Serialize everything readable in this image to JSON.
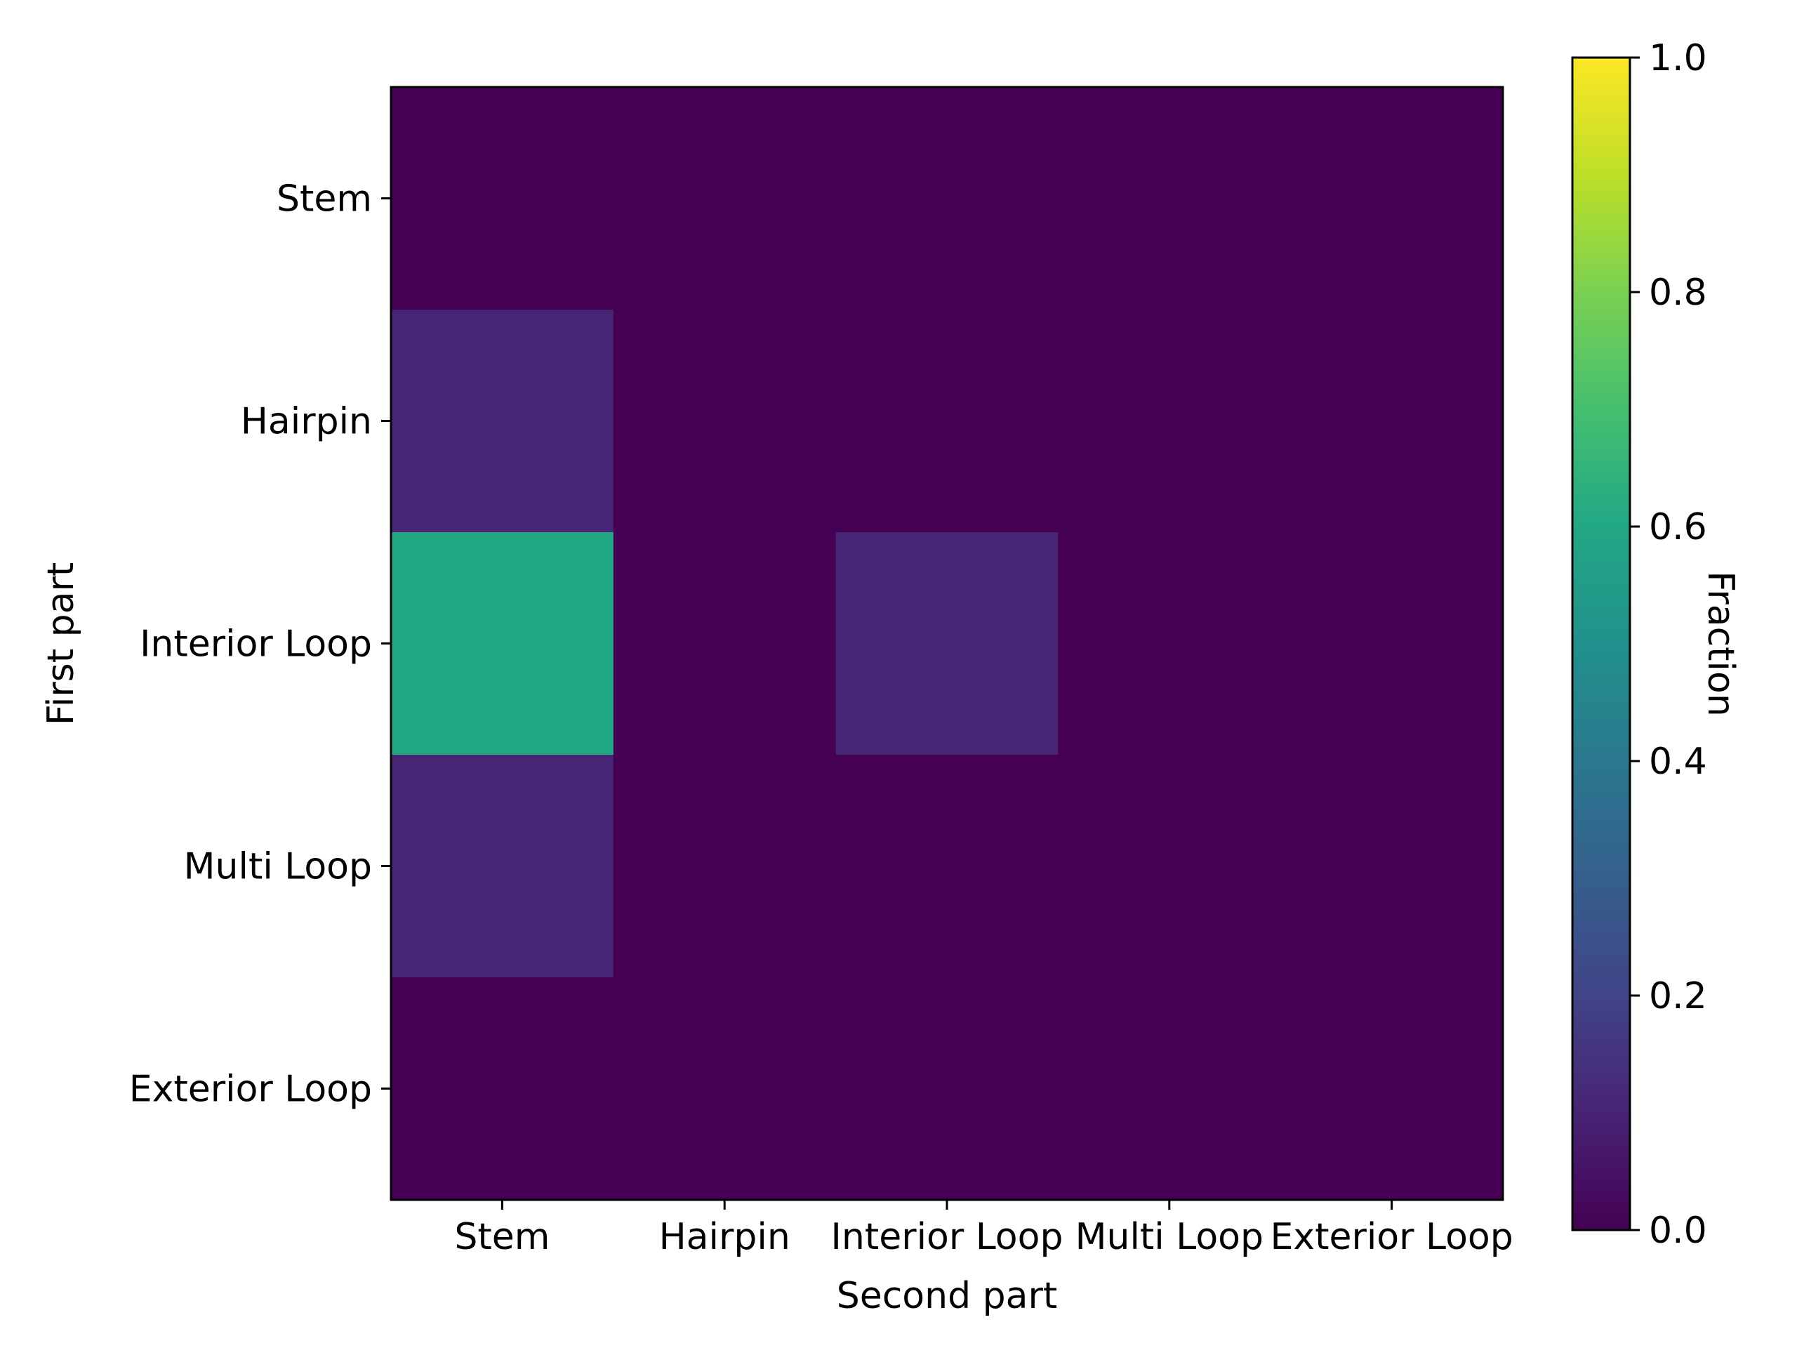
{
  "chart_data": {
    "type": "heatmap",
    "title": "",
    "xlabel": "Second part",
    "ylabel": "First part",
    "x_categories": [
      "Stem",
      "Hairpin",
      "Interior Loop",
      "Multi Loop",
      "Exterior Loop"
    ],
    "y_categories": [
      "Stem",
      "Hairpin",
      "Interior Loop",
      "Multi Loop",
      "Exterior Loop"
    ],
    "values": [
      [
        0.0,
        0.0,
        0.0,
        0.0,
        0.0
      ],
      [
        0.1,
        0.0,
        0.0,
        0.0,
        0.0
      ],
      [
        0.6,
        0.0,
        0.1,
        0.0,
        0.0
      ],
      [
        0.1,
        0.0,
        0.0,
        0.0,
        0.0
      ],
      [
        0.0,
        0.0,
        0.0,
        0.0,
        0.0
      ]
    ],
    "colormap": "viridis",
    "colorbar": {
      "label": "Fraction",
      "range": [
        0.0,
        1.0
      ],
      "ticks": [
        0.0,
        0.2,
        0.4,
        0.6,
        0.8,
        1.0
      ],
      "tick_labels": [
        "0.0",
        "0.2",
        "0.4",
        "0.6",
        "0.8",
        "1.0"
      ]
    },
    "grid": false
  }
}
